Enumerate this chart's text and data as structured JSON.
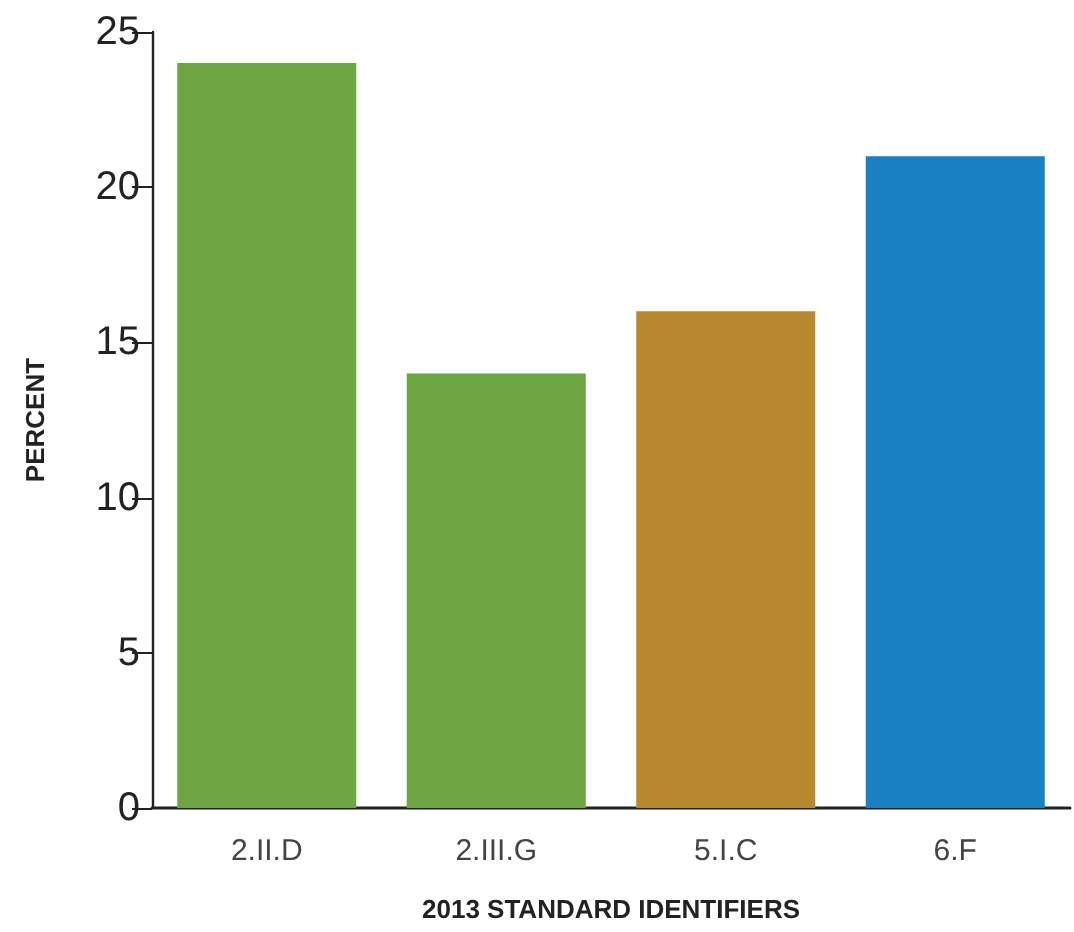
{
  "chart_data": {
    "type": "bar",
    "xlabel": "2013 STANDARD IDENTIFIERS",
    "ylabel": "PERCENT",
    "categories": [
      "2.II.D",
      "2.III.G",
      "5.I.C",
      "6.F"
    ],
    "values": [
      24,
      14,
      16,
      21
    ],
    "colors": [
      "#6ca542",
      "#6ca542",
      "#b8882e",
      "#1a80c4"
    ],
    "ylim": [
      0,
      25
    ],
    "yticks": [
      0,
      5,
      10,
      15,
      20,
      25
    ],
    "grid": false
  }
}
